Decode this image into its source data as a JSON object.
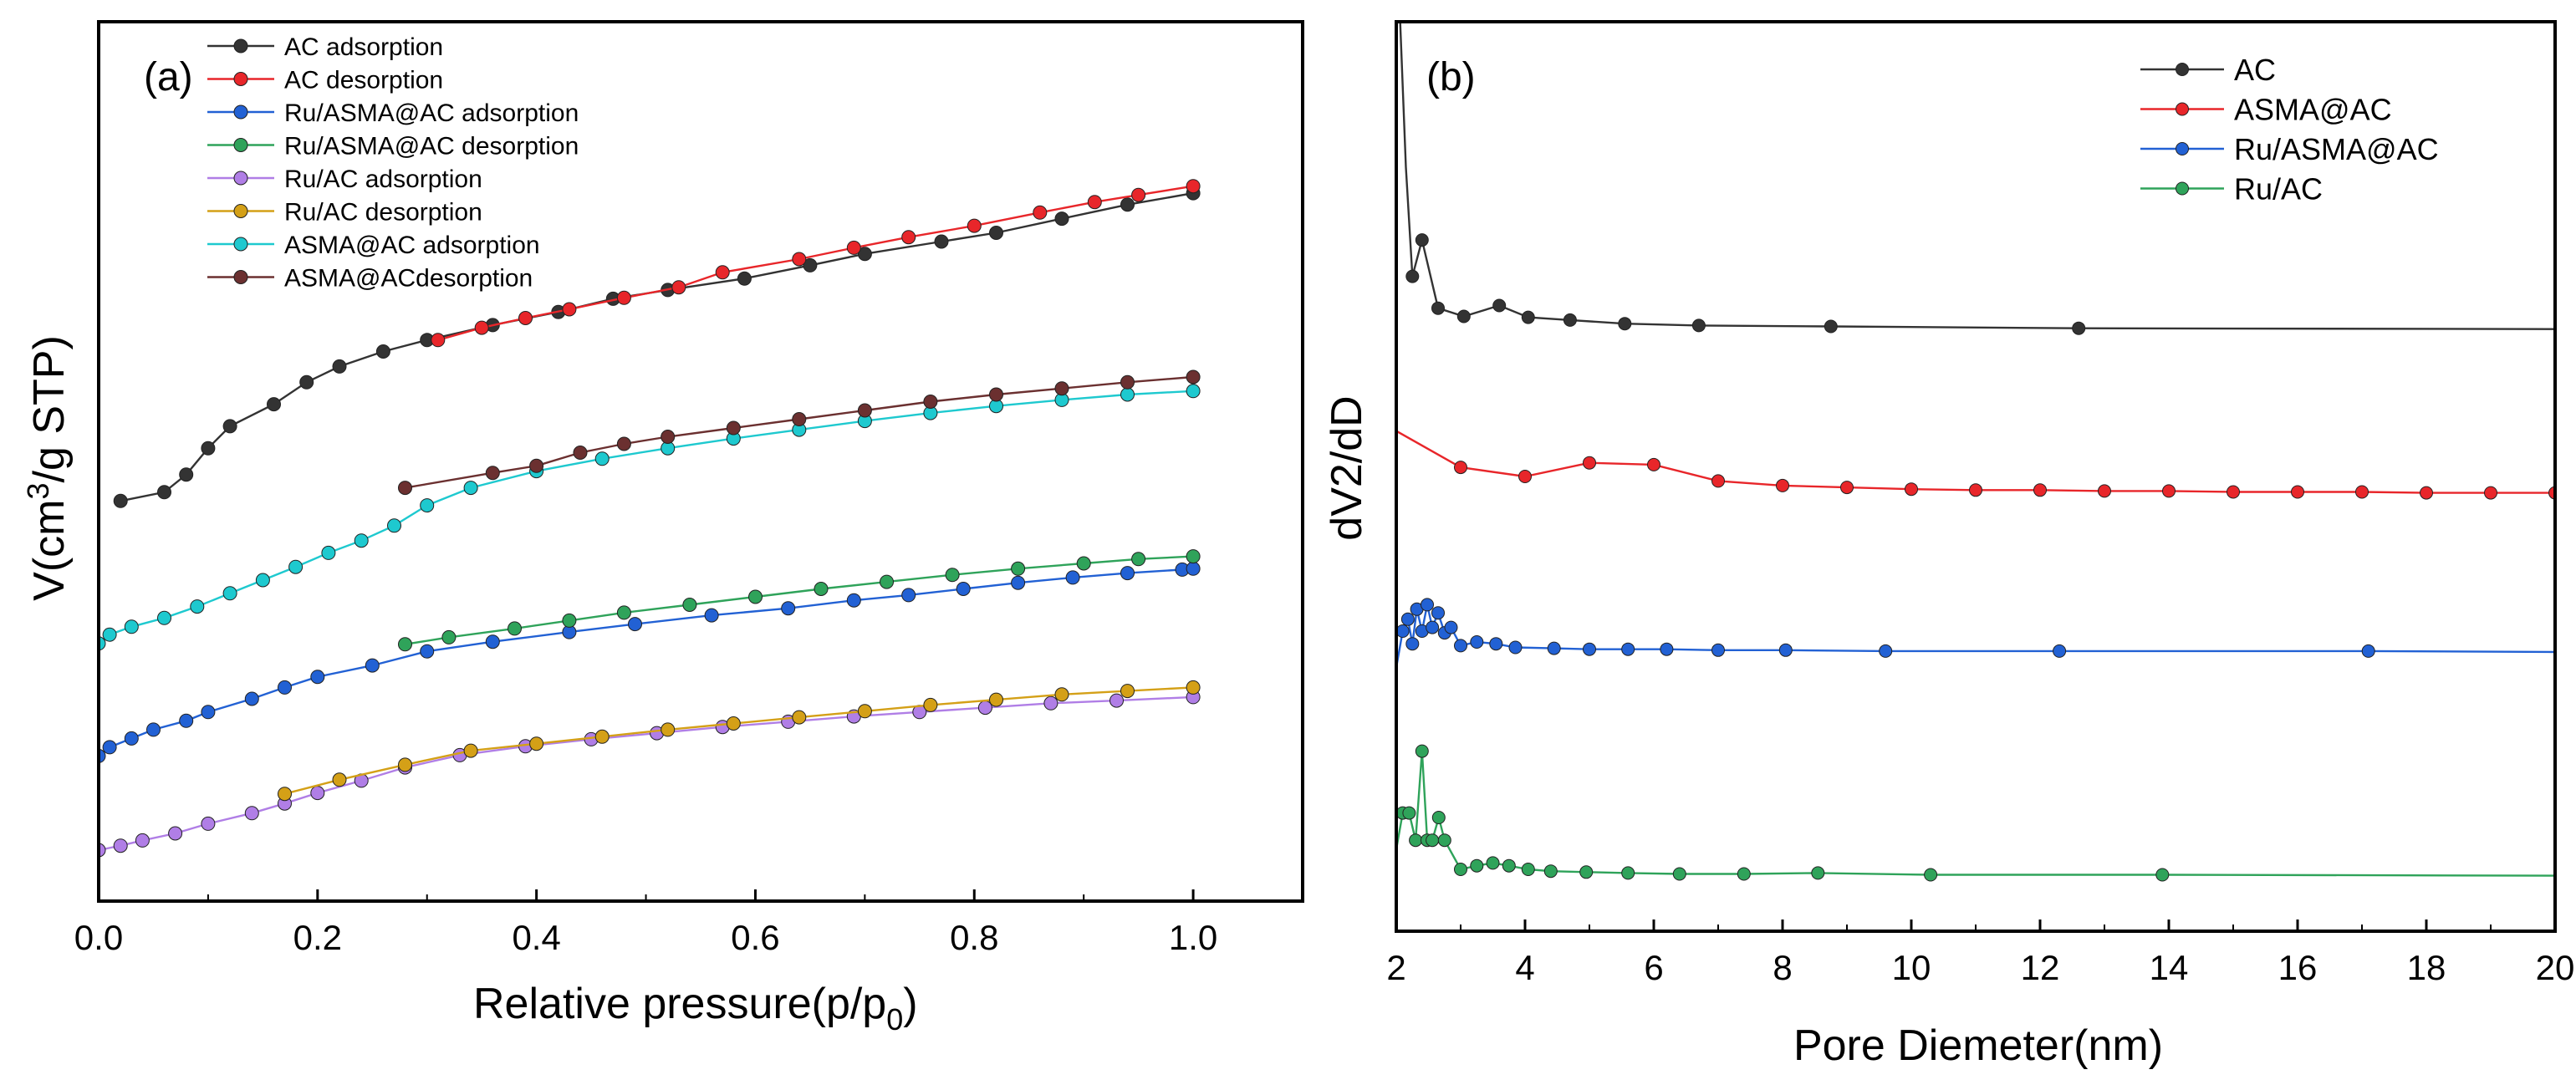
{
  "chart_data": [
    {
      "type": "line",
      "panel_label": "(a)",
      "xlabel": "Relative pressure(p/p",
      "xlabel_sub": "0",
      "xlabel_end": ")",
      "ylabel": "V(cm",
      "ylabel_sup": "3",
      "ylabel_end": "/g STP)",
      "xlim": [
        0.0,
        1.1
      ],
      "ylim": [
        0,
        100
      ],
      "y_tick_labels_shown": false,
      "x_ticks": [
        {
          "v": 0.0,
          "label": "0.0"
        },
        {
          "v": 0.2,
          "label": "0.2"
        },
        {
          "v": 0.4,
          "label": "0.4"
        },
        {
          "v": 0.6,
          "label": "0.6"
        },
        {
          "v": 0.8,
          "label": "0.8"
        },
        {
          "v": 1.0,
          "label": "1.0"
        }
      ],
      "legend_position": "top-left",
      "series": [
        {
          "name": "AC adsorption",
          "color": "#333333",
          "x": [
            0.02,
            0.06,
            0.08,
            0.1,
            0.12,
            0.16,
            0.19,
            0.22,
            0.26,
            0.3,
            0.36,
            0.42,
            0.47,
            0.52,
            0.59,
            0.65,
            0.7,
            0.77,
            0.82,
            0.88,
            0.94,
            1.0
          ],
          "y": [
            45.5,
            46.5,
            48.5,
            51.5,
            54.0,
            56.5,
            59.0,
            60.8,
            62.5,
            63.8,
            65.5,
            67.0,
            68.5,
            69.5,
            70.8,
            72.3,
            73.6,
            75.0,
            76.0,
            77.6,
            79.2,
            80.5
          ]
        },
        {
          "name": "AC desorption",
          "color": "#e8262a",
          "x": [
            0.31,
            0.35,
            0.39,
            0.43,
            0.48,
            0.53,
            0.57,
            0.64,
            0.69,
            0.74,
            0.8,
            0.86,
            0.91,
            0.95,
            1.0
          ],
          "y": [
            63.8,
            65.2,
            66.3,
            67.3,
            68.6,
            69.8,
            71.5,
            73.0,
            74.3,
            75.5,
            76.8,
            78.3,
            79.5,
            80.3,
            81.3
          ]
        },
        {
          "name": "Ru/ASMA@AC adsorption",
          "color": "#2261d4",
          "x": [
            0.0,
            0.01,
            0.03,
            0.05,
            0.08,
            0.1,
            0.14,
            0.17,
            0.2,
            0.25,
            0.3,
            0.36,
            0.43,
            0.49,
            0.56,
            0.63,
            0.69,
            0.74,
            0.79,
            0.84,
            0.89,
            0.94,
            0.99,
            1.0
          ],
          "y": [
            16.5,
            17.5,
            18.5,
            19.5,
            20.5,
            21.5,
            23.0,
            24.3,
            25.5,
            26.8,
            28.4,
            29.5,
            30.6,
            31.5,
            32.5,
            33.3,
            34.2,
            34.8,
            35.5,
            36.2,
            36.8,
            37.3,
            37.7,
            37.8
          ]
        },
        {
          "name": "Ru/ASMA@AC desorption",
          "color": "#2fa35a",
          "x": [
            0.28,
            0.32,
            0.38,
            0.43,
            0.48,
            0.54,
            0.6,
            0.66,
            0.72,
            0.78,
            0.84,
            0.9,
            0.95,
            1.0
          ],
          "y": [
            29.2,
            30.0,
            31.0,
            31.9,
            32.8,
            33.7,
            34.6,
            35.5,
            36.3,
            37.1,
            37.8,
            38.4,
            38.9,
            39.2
          ]
        },
        {
          "name": "Ru/AC adsorption",
          "color": "#b07ee6",
          "x": [
            0.0,
            0.02,
            0.04,
            0.07,
            0.1,
            0.14,
            0.17,
            0.2,
            0.24,
            0.28,
            0.33,
            0.39,
            0.45,
            0.51,
            0.57,
            0.63,
            0.69,
            0.75,
            0.81,
            0.87,
            0.93,
            1.0
          ],
          "y": [
            5.8,
            6.3,
            6.9,
            7.7,
            8.8,
            10.0,
            11.1,
            12.3,
            13.7,
            15.2,
            16.6,
            17.6,
            18.4,
            19.1,
            19.8,
            20.4,
            21.0,
            21.5,
            22.0,
            22.5,
            22.8,
            23.2
          ]
        },
        {
          "name": "Ru/AC desorption",
          "color": "#d4a017",
          "x": [
            0.17,
            0.22,
            0.28,
            0.34,
            0.4,
            0.46,
            0.52,
            0.58,
            0.64,
            0.7,
            0.76,
            0.82,
            0.88,
            0.94,
            1.0
          ],
          "y": [
            12.2,
            13.8,
            15.5,
            17.1,
            17.9,
            18.7,
            19.5,
            20.2,
            20.9,
            21.6,
            22.3,
            22.9,
            23.5,
            23.9,
            24.3
          ]
        },
        {
          "name": "ASMA@AC adsorption",
          "color": "#1ec9cf",
          "x": [
            0.0,
            0.01,
            0.03,
            0.06,
            0.09,
            0.12,
            0.15,
            0.18,
            0.21,
            0.24,
            0.27,
            0.3,
            0.34,
            0.4,
            0.46,
            0.52,
            0.58,
            0.64,
            0.7,
            0.76,
            0.82,
            0.88,
            0.94,
            1.0
          ],
          "y": [
            29.3,
            30.3,
            31.2,
            32.2,
            33.5,
            35.0,
            36.5,
            38.0,
            39.6,
            41.0,
            42.7,
            45.0,
            47.0,
            48.9,
            50.3,
            51.5,
            52.6,
            53.6,
            54.6,
            55.5,
            56.3,
            57.0,
            57.6,
            58.0
          ]
        },
        {
          "name": "ASMA@ACdesorption",
          "color": "#6b3030",
          "x": [
            0.28,
            0.36,
            0.4,
            0.44,
            0.48,
            0.52,
            0.58,
            0.64,
            0.7,
            0.76,
            0.82,
            0.88,
            0.94,
            1.0
          ],
          "y": [
            47.0,
            48.7,
            49.5,
            51.0,
            52.0,
            52.8,
            53.8,
            54.8,
            55.8,
            56.8,
            57.6,
            58.3,
            59.0,
            59.6
          ]
        }
      ]
    },
    {
      "type": "line",
      "panel_label": "(b)",
      "xlabel": "Pore Diemeter(nm)",
      "ylabel": "dV2/dD",
      "xlim": [
        2,
        20
      ],
      "ylim": [
        0,
        100
      ],
      "y_tick_labels_shown": false,
      "x_ticks": [
        {
          "v": 2,
          "label": "2"
        },
        {
          "v": 4,
          "label": "4"
        },
        {
          "v": 6,
          "label": "6"
        },
        {
          "v": 8,
          "label": "8"
        },
        {
          "v": 10,
          "label": "10"
        },
        {
          "v": 12,
          "label": "12"
        },
        {
          "v": 14,
          "label": "14"
        },
        {
          "v": 16,
          "label": "16"
        },
        {
          "v": 18,
          "label": "18"
        },
        {
          "v": 20,
          "label": "20"
        }
      ],
      "legend_position": "top-right",
      "series": [
        {
          "name": "AC",
          "color": "#333333",
          "x": [
            2.05,
            2.15,
            2.25,
            2.4,
            2.65,
            3.05,
            3.6,
            4.05,
            4.7,
            5.55,
            6.7,
            8.75,
            12.6,
            20.0
          ],
          "y": [
            102,
            84,
            72,
            76,
            68.5,
            67.6,
            68.8,
            67.5,
            67.2,
            66.8,
            66.6,
            66.5,
            66.3,
            66.2
          ],
          "markers": [
            false,
            false,
            true,
            true,
            true,
            true,
            true,
            true,
            true,
            true,
            true,
            true,
            true,
            false
          ]
        },
        {
          "name": "ASMA@AC",
          "color": "#e8262a",
          "x": [
            2.0,
            3.0,
            4.0,
            5.0,
            6.0,
            7.0,
            8.0,
            9.0,
            10.0,
            11.0,
            12.0,
            13.0,
            14.0,
            15.0,
            16.0,
            17.0,
            18.0,
            19.0,
            20.0
          ],
          "y": [
            55,
            51,
            50,
            51.5,
            51.3,
            49.5,
            49.0,
            48.8,
            48.6,
            48.5,
            48.5,
            48.4,
            48.4,
            48.3,
            48.3,
            48.3,
            48.2,
            48.2,
            48.2
          ],
          "markers": [
            false,
            true,
            true,
            true,
            true,
            true,
            true,
            true,
            true,
            true,
            true,
            true,
            true,
            true,
            true,
            true,
            true,
            true,
            true
          ]
        },
        {
          "name": "Ru/ASMA@AC",
          "color": "#2261d4",
          "x": [
            2.0,
            2.1,
            2.18,
            2.25,
            2.32,
            2.4,
            2.48,
            2.56,
            2.65,
            2.75,
            2.85,
            3.0,
            3.25,
            3.55,
            3.85,
            4.45,
            5.0,
            5.6,
            6.2,
            7.0,
            8.05,
            9.6,
            12.3,
            17.1,
            20.0
          ],
          "y": [
            29,
            33.0,
            34.3,
            31.6,
            35.4,
            33.0,
            35.9,
            33.4,
            35.0,
            32.8,
            33.4,
            31.4,
            31.8,
            31.6,
            31.2,
            31.1,
            31.0,
            31.0,
            31.0,
            30.9,
            30.9,
            30.8,
            30.8,
            30.8,
            30.7
          ],
          "markers": [
            false,
            true,
            true,
            true,
            true,
            true,
            true,
            true,
            true,
            true,
            true,
            true,
            true,
            true,
            true,
            true,
            true,
            true,
            true,
            true,
            true,
            true,
            true,
            true,
            false
          ]
        },
        {
          "name": "Ru/AC",
          "color": "#2fa35a",
          "x": [
            2.0,
            2.1,
            2.2,
            2.3,
            2.4,
            2.48,
            2.56,
            2.66,
            2.75,
            3.0,
            3.25,
            3.5,
            3.75,
            4.05,
            4.4,
            4.95,
            5.6,
            6.4,
            7.4,
            8.55,
            10.3,
            13.9,
            20.0
          ],
          "y": [
            9,
            13.0,
            13.0,
            10.0,
            19.8,
            10.0,
            10.0,
            12.5,
            10.0,
            6.8,
            7.2,
            7.5,
            7.2,
            6.8,
            6.6,
            6.5,
            6.4,
            6.3,
            6.3,
            6.4,
            6.2,
            6.2,
            6.1
          ],
          "markers": [
            false,
            true,
            true,
            true,
            true,
            true,
            true,
            true,
            true,
            true,
            true,
            true,
            true,
            true,
            true,
            true,
            true,
            true,
            true,
            true,
            true,
            true,
            false
          ]
        }
      ]
    }
  ]
}
